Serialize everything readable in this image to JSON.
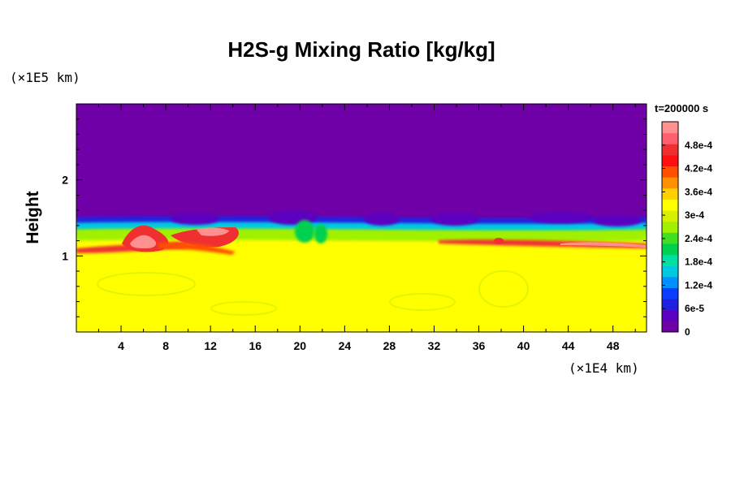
{
  "chart_data": {
    "type": "heatmap",
    "title": "H2S-g Mixing Ratio [kg/kg]",
    "ylabel": "Height",
    "xlabel": "",
    "x_unit": "(×1E4 km)",
    "y_unit": "(×1E5 km)",
    "time_label": "t=200000 s",
    "xlim": [
      0,
      51
    ],
    "ylim": [
      0,
      3
    ],
    "x_ticks": [
      4,
      8,
      12,
      16,
      20,
      24,
      28,
      32,
      36,
      40,
      44,
      48
    ],
    "x_tick_labels": [
      "4",
      "8",
      "12",
      "16",
      "20",
      "24",
      "28",
      "32",
      "36",
      "40",
      "44",
      "48"
    ],
    "y_ticks": [
      1,
      2
    ],
    "y_tick_labels": [
      "1",
      "2"
    ],
    "colorbar": {
      "min": 0,
      "max": 0.00054,
      "tick_values": [
        0,
        6e-05,
        0.00012,
        0.00018,
        0.00024,
        0.0003,
        0.00036,
        0.00042,
        0.00048
      ],
      "tick_labels": [
        "0",
        "6e-5",
        "1.2e-4",
        "1.8e-4",
        "2.4e-4",
        "3e-4",
        "3.6e-4",
        "4.2e-4",
        "4.8e-4"
      ],
      "colors": [
        "#7000a8",
        "#5c00c0",
        "#2020e0",
        "#0a3cff",
        "#0090ff",
        "#00c8e0",
        "#00e0a0",
        "#00d050",
        "#40e020",
        "#a0f000",
        "#d8f000",
        "#ffff00",
        "#ffd000",
        "#ff9000",
        "#ff5000",
        "#ff1010",
        "#f03030",
        "#ff6070",
        "#ff9090"
      ]
    },
    "fields": {
      "lower_region_value": 0.00034,
      "upper_region_value": 0,
      "interface_height": 1.5
    }
  }
}
